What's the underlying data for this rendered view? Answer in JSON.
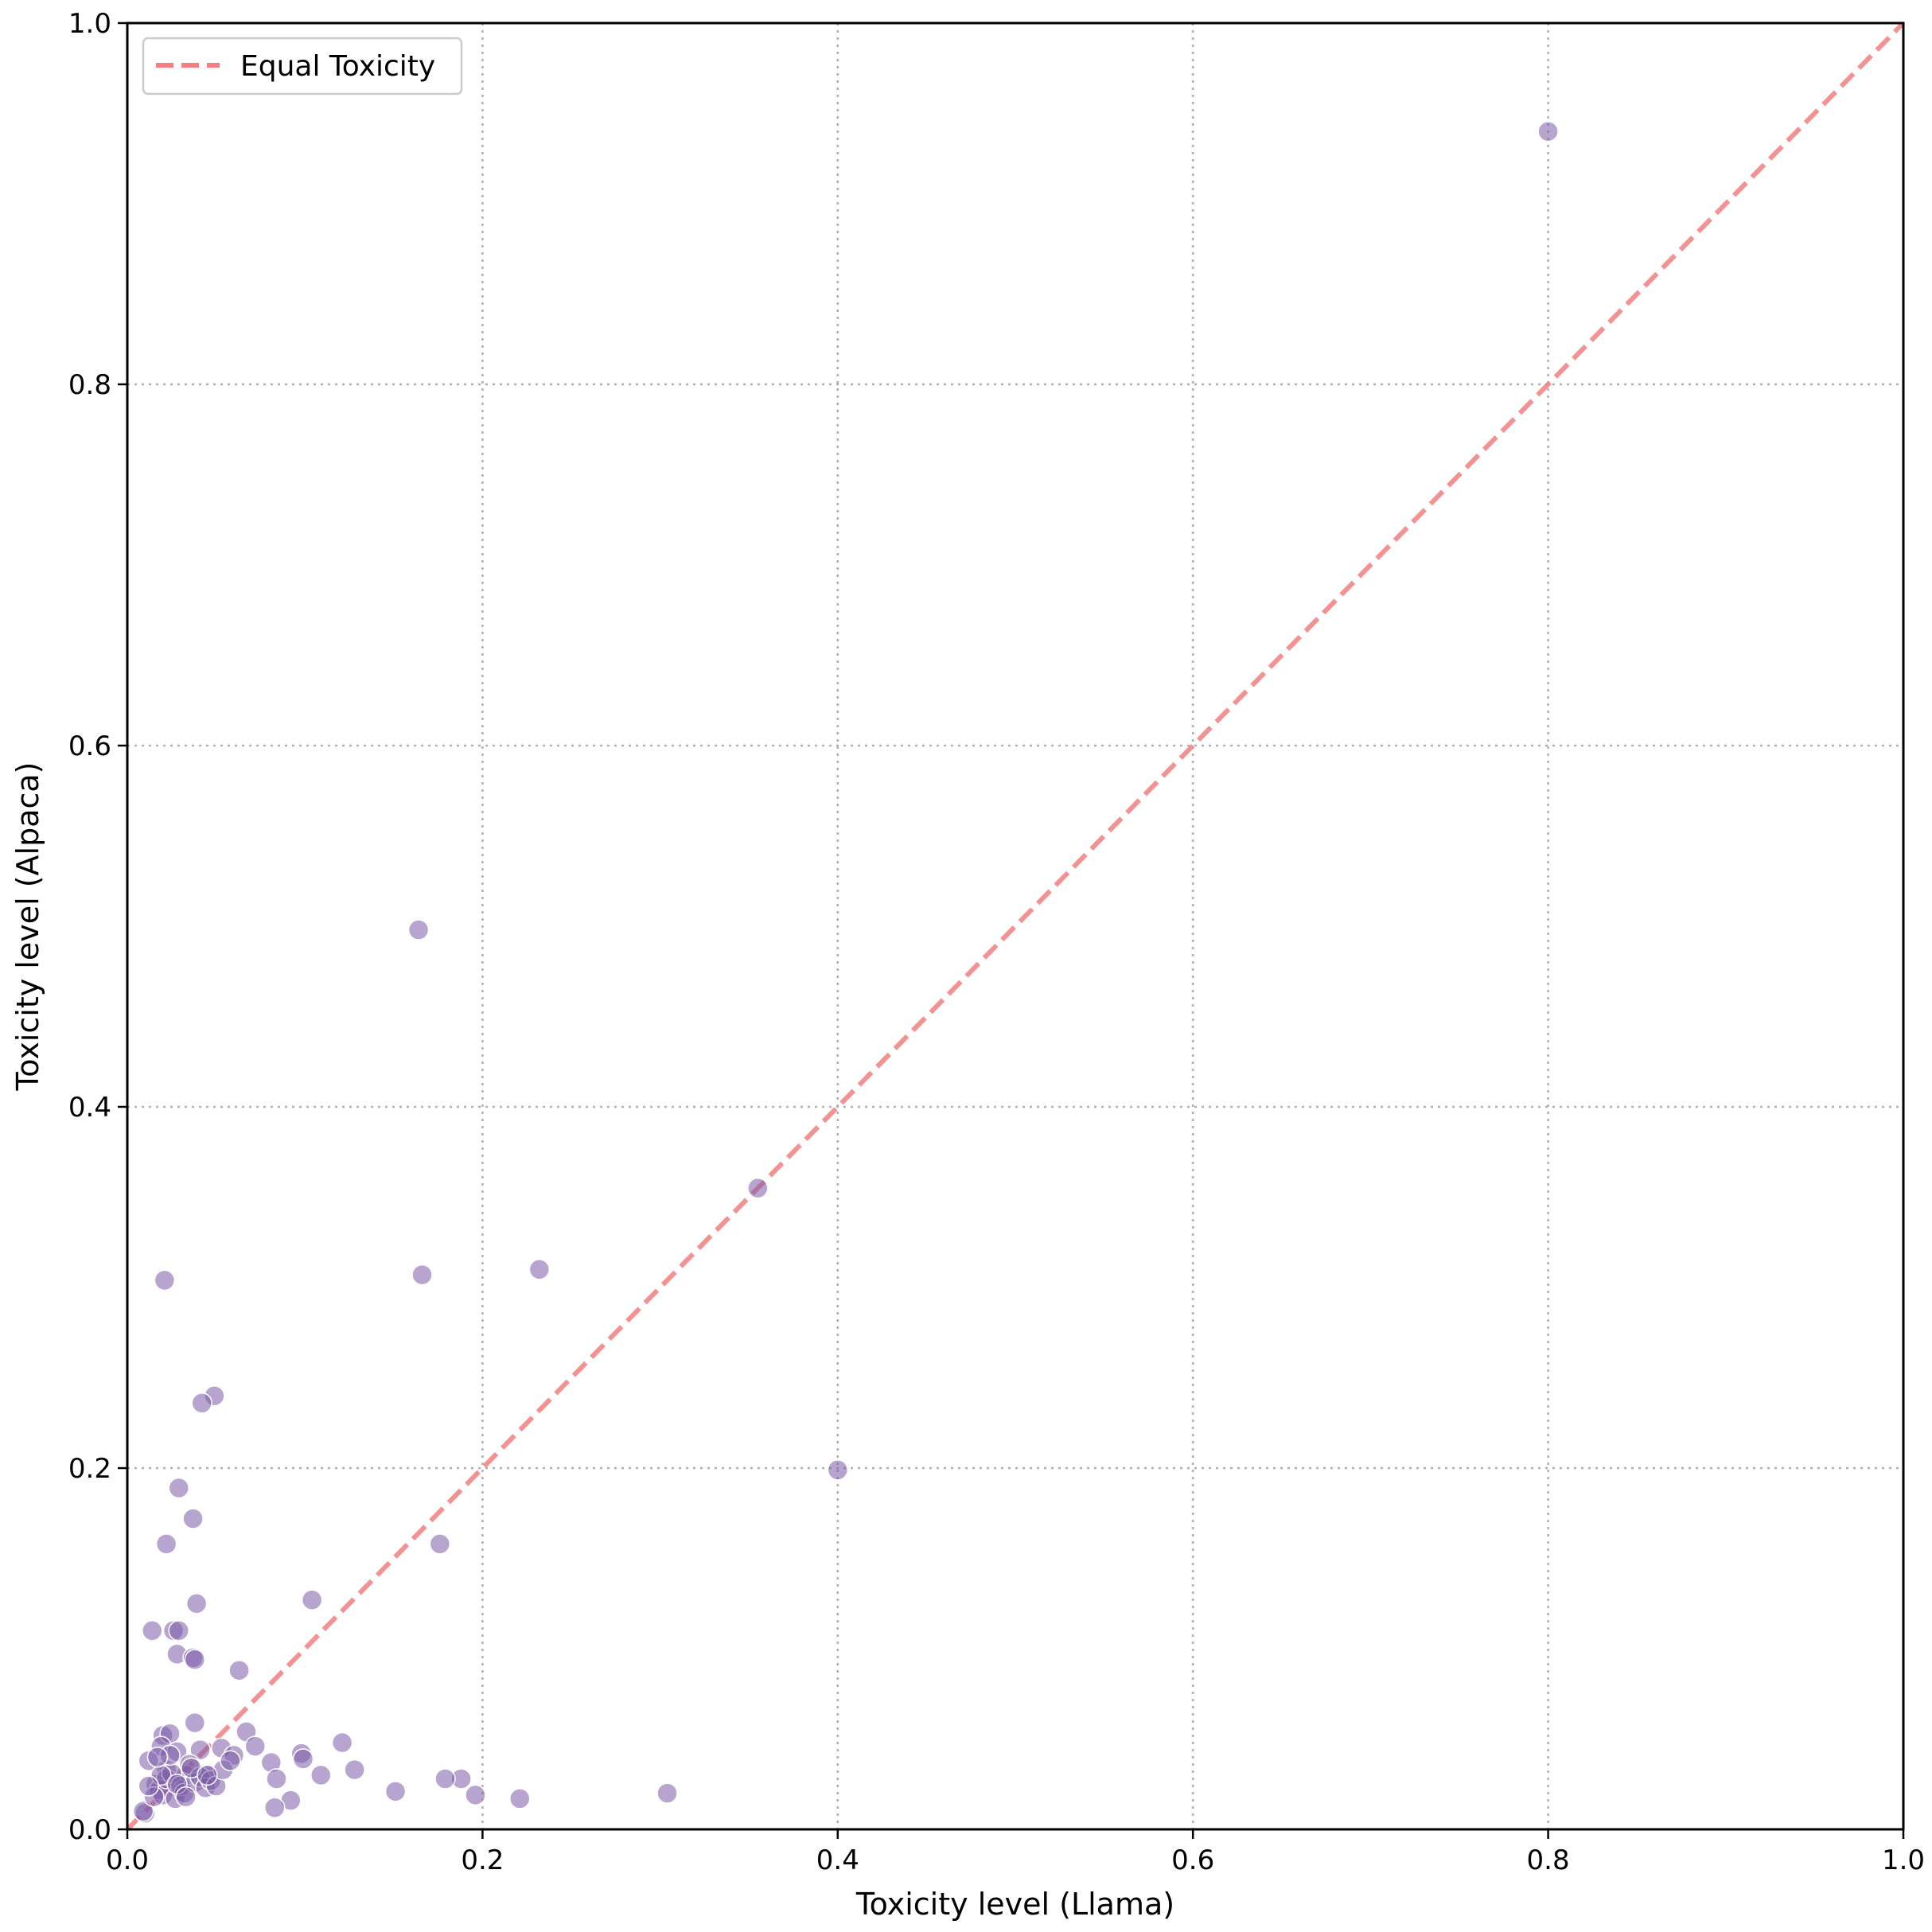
{
  "chart_data": {
    "type": "scatter",
    "title": "",
    "xlabel": "Toxicity level (Llama)",
    "ylabel": "Toxicity level (Alpaca)",
    "xlim": [
      0.0,
      1.0
    ],
    "ylim": [
      0.0,
      1.0
    ],
    "xticks": [
      "0.0",
      "0.2",
      "0.4",
      "0.6",
      "0.8",
      "1.0"
    ],
    "yticks": [
      "0.0",
      "0.2",
      "0.4",
      "0.6",
      "0.8",
      "1.0"
    ],
    "grid": true,
    "legend_position": "top-left",
    "colors": {
      "points": "#7b5ba8",
      "reference_line": "#f28080"
    },
    "reference_line": {
      "name": "Equal Toxicity",
      "x": [
        0.0,
        1.0
      ],
      "y": [
        0.0,
        1.0
      ],
      "style": "dashed"
    },
    "series": [
      {
        "x": [
          0.8,
          0.164,
          0.355,
          0.166,
          0.232,
          0.021,
          0.049,
          0.042,
          0.4,
          0.029,
          0.037,
          0.022,
          0.176,
          0.039,
          0.104,
          0.014,
          0.026,
          0.029,
          0.028,
          0.037,
          0.038,
          0.063,
          0.038,
          0.02,
          0.024,
          0.019,
          0.067,
          0.053,
          0.041,
          0.028,
          0.121,
          0.072,
          0.098,
          0.099,
          0.081,
          0.06,
          0.046,
          0.033,
          0.012,
          0.022,
          0.029,
          0.128,
          0.109,
          0.188,
          0.179,
          0.084,
          0.151,
          0.196,
          0.221,
          0.304,
          0.092,
          0.083,
          0.01,
          0.009,
          0.016,
          0.018,
          0.02,
          0.022,
          0.025,
          0.027,
          0.03,
          0.032,
          0.035,
          0.038,
          0.041,
          0.044,
          0.047,
          0.05,
          0.054,
          0.058,
          0.015,
          0.019,
          0.024,
          0.028,
          0.033,
          0.036,
          0.045,
          0.012,
          0.017
        ],
        "y": [
          0.94,
          0.498,
          0.355,
          0.307,
          0.31,
          0.304,
          0.24,
          0.236,
          0.199,
          0.189,
          0.172,
          0.158,
          0.158,
          0.125,
          0.127,
          0.11,
          0.11,
          0.11,
          0.097,
          0.095,
          0.094,
          0.088,
          0.059,
          0.052,
          0.053,
          0.046,
          0.054,
          0.045,
          0.044,
          0.043,
          0.048,
          0.046,
          0.042,
          0.039,
          0.037,
          0.041,
          0.03,
          0.03,
          0.038,
          0.033,
          0.022,
          0.033,
          0.03,
          0.028,
          0.028,
          0.028,
          0.021,
          0.019,
          0.017,
          0.02,
          0.016,
          0.012,
          0.009,
          0.01,
          0.025,
          0.022,
          0.019,
          0.028,
          0.031,
          0.017,
          0.024,
          0.02,
          0.036,
          0.026,
          0.029,
          0.023,
          0.027,
          0.024,
          0.033,
          0.038,
          0.018,
          0.03,
          0.041,
          0.025,
          0.018,
          0.034,
          0.03,
          0.024,
          0.04
        ]
      }
    ]
  }
}
